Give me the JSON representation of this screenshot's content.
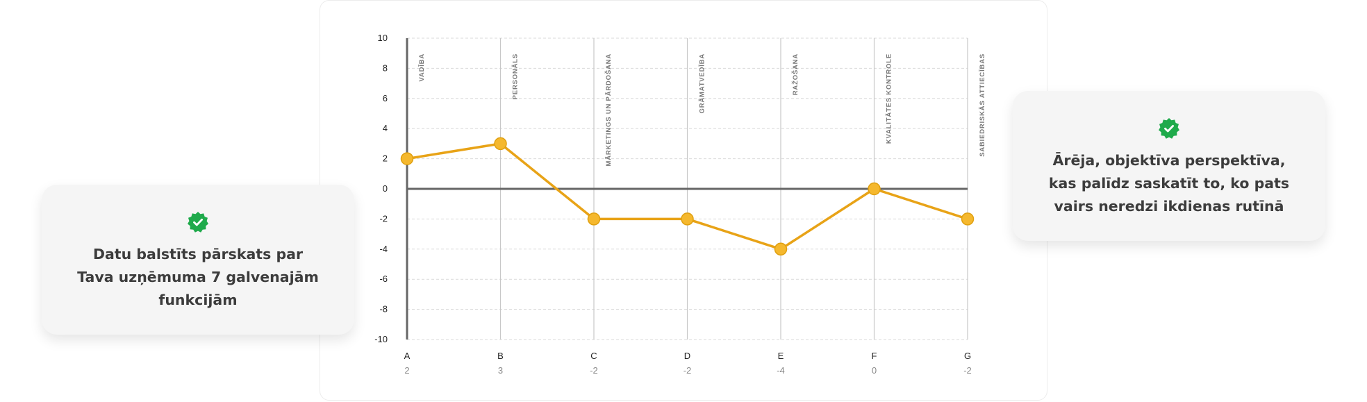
{
  "left_card": {
    "icon": "verified-check-icon",
    "text": "Datu balstīts pārskats par Tava uzņēmuma 7 galvenajām funkcijām"
  },
  "right_card": {
    "icon": "verified-check-icon",
    "text": "Ārēja, objektīva perspektīva, kas palīdz saskatīt to, ko pats vairs neredzi ikdienas rutīnā"
  },
  "chart_data": {
    "type": "line",
    "categories": [
      "A",
      "B",
      "C",
      "D",
      "E",
      "F",
      "G"
    ],
    "functions": [
      "VADĪBA",
      "PERSONĀLS",
      "MĀRKETINGS UN PĀRDOŠANA",
      "GRĀMATVEDĪBA",
      "RAŽOŠANA",
      "KVALITĀTES KONTROLE",
      "SABIEDRISKĀS ATTIECĪBAS"
    ],
    "series": [
      {
        "values": [
          2,
          3,
          -2,
          -2,
          -4,
          0,
          -2
        ]
      }
    ],
    "value_labels": [
      "2",
      "3",
      "-2",
      "-2",
      "-4",
      "0",
      "-2"
    ],
    "y_ticks": [
      10,
      8,
      6,
      4,
      2,
      0,
      -2,
      -4,
      -6,
      -8,
      -10
    ],
    "ylim": [
      -10,
      10
    ],
    "title": "",
    "xlabel": "",
    "ylabel": "",
    "grid": true,
    "colors": {
      "line": "#e8a317",
      "marker_fill": "#f5b82e",
      "marker_stroke": "#e0a010",
      "axis": "#666666",
      "grid": "#d9d9d9"
    }
  }
}
